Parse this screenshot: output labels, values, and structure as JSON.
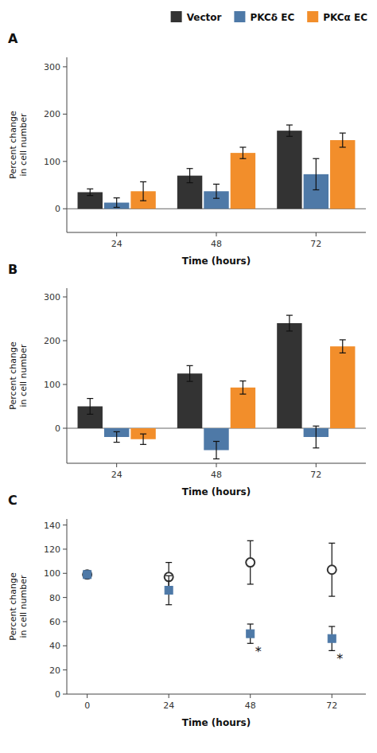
{
  "chart_data": [
    {
      "type": "bar",
      "title": "A",
      "categories": [
        "24",
        "48",
        "72"
      ],
      "series": [
        {
          "name": "Vector",
          "color": "#333333",
          "values": [
            35,
            70,
            165
          ],
          "errors": [
            7,
            15,
            12
          ]
        },
        {
          "name": "PKCδ EC",
          "color": "#4e79a7",
          "values": [
            13,
            37,
            73
          ],
          "errors": [
            10,
            15,
            33
          ]
        },
        {
          "name": "PKCα EC",
          "color": "#f28e2b",
          "values": [
            37,
            118,
            145
          ],
          "errors": [
            20,
            12,
            15
          ]
        }
      ],
      "x_label": "Time (hours)",
      "y_label": "Percent change\nin cell number",
      "ylim": [
        -50,
        320
      ],
      "yticks": [
        0,
        100,
        200,
        300
      ],
      "grid": false,
      "legend": "upper right"
    },
    {
      "type": "bar",
      "title": "B",
      "categories": [
        "24",
        "48",
        "72"
      ],
      "series": [
        {
          "color": "#333333",
          "values": [
            50,
            125,
            240
          ],
          "errors": [
            18,
            18,
            18
          ]
        },
        {
          "color": "#4e79a7",
          "values": [
            -20,
            -50,
            -20
          ],
          "errors": [
            12,
            20,
            25
          ]
        },
        {
          "color": "#f28e2b",
          "values": [
            -25,
            93,
            187
          ],
          "errors": [
            12,
            15,
            15
          ]
        }
      ],
      "x_label": "Time (hours)",
      "y_label": "Percent change\nin cell number",
      "ylim": [
        -80,
        320
      ],
      "yticks": [
        0,
        100,
        200,
        300
      ],
      "grid": false
    },
    {
      "type": "scatter",
      "title": "C",
      "x": [
        0,
        24,
        48,
        72
      ],
      "series": [
        {
          "color": "#333333",
          "marker": "circle",
          "values": [
            99,
            97,
            109,
            103
          ],
          "errors": [
            3,
            12,
            18,
            22
          ]
        },
        {
          "color": "#4e79a7",
          "marker": "square",
          "values": [
            99,
            86,
            50,
            46
          ],
          "errors": [
            3,
            12,
            8,
            10
          ]
        }
      ],
      "x_label": "Time (hours)",
      "y_label": "Percent change\nin cell number",
      "xlim": [
        -6,
        82
      ],
      "xticks": [
        0,
        24,
        48,
        72
      ],
      "ylim": [
        0,
        145
      ],
      "yticks": [
        0,
        20,
        40,
        60,
        80,
        100,
        120,
        140
      ],
      "grid": false,
      "annotations": [
        {
          "text": "*",
          "x": 48
        },
        {
          "text": "*",
          "x": 72
        }
      ]
    }
  ]
}
